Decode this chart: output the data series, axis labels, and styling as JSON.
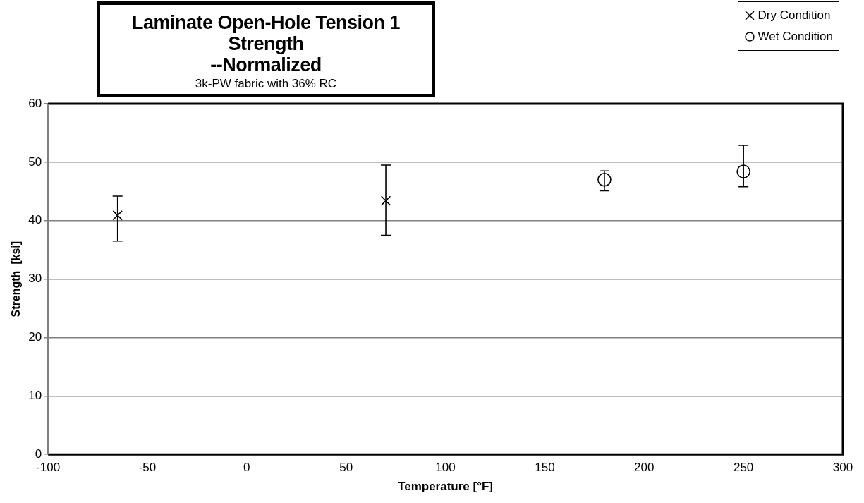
{
  "chart_data": {
    "type": "scatter",
    "title": "Laminate Open-Hole Tension 1 Strength\n--Normalized",
    "subtitle": "3k-PW fabric with 36% RC",
    "xlabel": "Temperature [°F]",
    "ylabel": "Strength  [ksi]",
    "xlim": [
      -100,
      300
    ],
    "xticks": [
      -100,
      -50,
      0,
      50,
      100,
      150,
      200,
      250,
      300
    ],
    "ylim": [
      0,
      60
    ],
    "yticks": [
      0,
      10,
      20,
      30,
      40,
      50,
      60
    ],
    "grid": "y",
    "legend": "top right",
    "series": [
      {
        "name": "Dry Condition",
        "color": "#000000",
        "marker": "cross",
        "x": [
          -65,
          70
        ],
        "values": [
          40.9,
          43.4
        ],
        "errors": [
          [
            36.5,
            44.2
          ],
          [
            37.5,
            49.5
          ]
        ]
      },
      {
        "name": "Wet Condition",
        "color": "#000000",
        "marker": "circle",
        "x": [
          180,
          250
        ],
        "values": [
          47.0,
          48.4
        ],
        "errors": [
          [
            45.1,
            48.5
          ],
          [
            45.8,
            52.9
          ]
        ]
      }
    ]
  }
}
